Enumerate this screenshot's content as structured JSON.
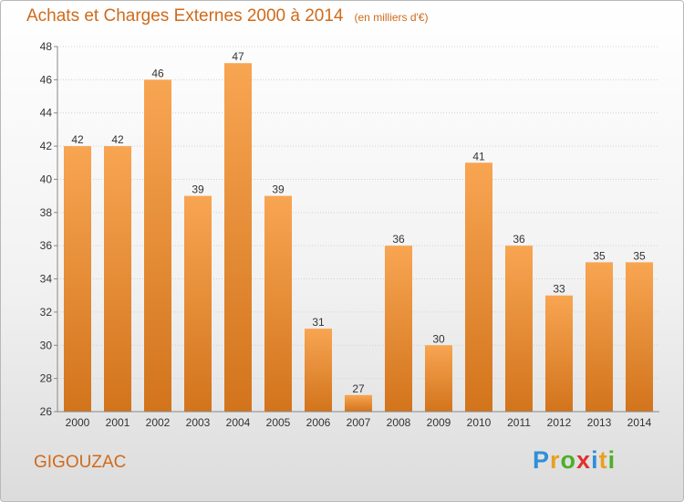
{
  "page": {
    "title": "Achats et Charges Externes 2000 à 2014",
    "subtitle": "(en milliers d'€)",
    "commune": "GIGOUZAC",
    "logo": {
      "text": "Proxiti",
      "letter_colors": [
        "#2f8fd8",
        "#e8a020",
        "#4caf2a",
        "#e03030",
        "#2f8fd8",
        "#e8a020",
        "#4caf2a"
      ]
    }
  },
  "chart_data": {
    "type": "bar",
    "title": "Achats et Charges Externes 2000 à 2014",
    "subtitle": "(en milliers d'€)",
    "categories": [
      "2000",
      "2001",
      "2002",
      "2003",
      "2004",
      "2005",
      "2006",
      "2007",
      "2008",
      "2009",
      "2010",
      "2011",
      "2012",
      "2013",
      "2014"
    ],
    "values": [
      42,
      42,
      46,
      39,
      47,
      39,
      31,
      27,
      36,
      30,
      41,
      36,
      33,
      35,
      35
    ],
    "ylim": [
      26,
      48
    ],
    "yticks": [
      26,
      28,
      30,
      32,
      34,
      36,
      38,
      40,
      42,
      44,
      46,
      48
    ],
    "grid": true,
    "bar_color_top": "#f8a552",
    "bar_color_bottom": "#d2741c"
  }
}
